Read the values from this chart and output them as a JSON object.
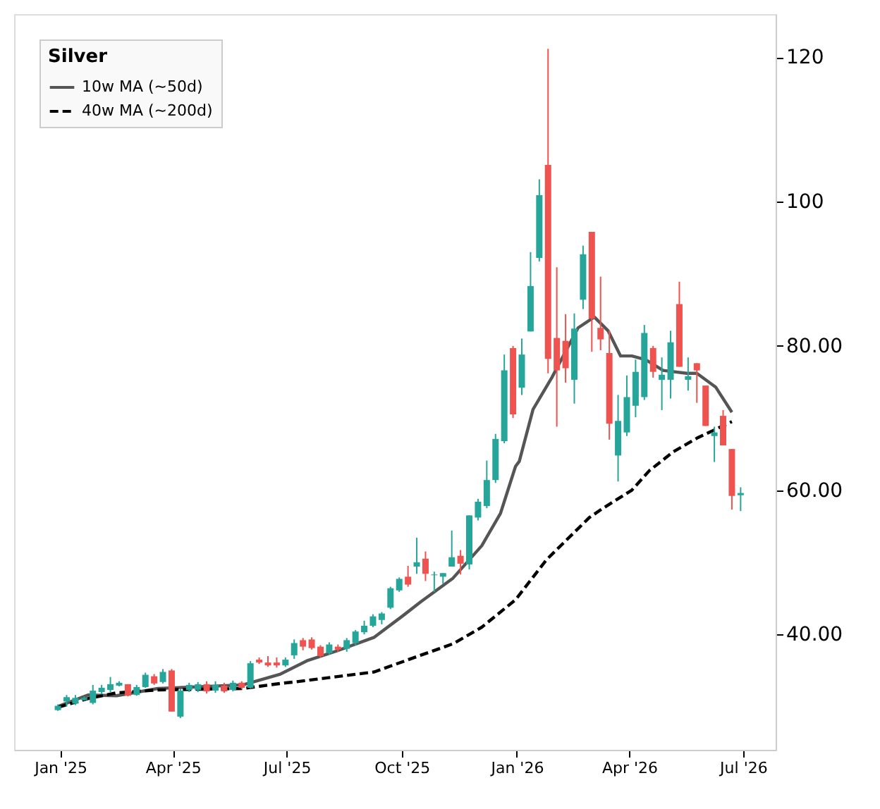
{
  "chart_data": {
    "type": "candlestick",
    "legend_title": "Silver",
    "x": [
      "2024-12-30",
      "2025-01-06",
      "2025-01-13",
      "2025-01-20",
      "2025-01-27",
      "2025-02-03",
      "2025-02-10",
      "2025-02-17",
      "2025-02-24",
      "2025-03-03",
      "2025-03-10",
      "2025-03-17",
      "2025-03-24",
      "2025-03-31",
      "2025-04-07",
      "2025-04-14",
      "2025-04-21",
      "2025-04-28",
      "2025-05-05",
      "2025-05-12",
      "2025-05-19",
      "2025-05-26",
      "2025-06-02",
      "2025-06-09",
      "2025-06-16",
      "2025-06-23",
      "2025-06-30",
      "2025-07-07",
      "2025-07-14",
      "2025-07-21",
      "2025-07-28",
      "2025-08-04",
      "2025-08-11",
      "2025-08-18",
      "2025-08-25",
      "2025-09-01",
      "2025-09-08",
      "2025-09-15",
      "2025-09-22",
      "2025-09-29",
      "2025-10-06",
      "2025-10-13",
      "2025-10-20",
      "2025-10-27",
      "2025-11-03",
      "2025-11-10",
      "2025-11-17",
      "2025-11-24",
      "2025-12-01",
      "2025-12-08",
      "2025-12-15",
      "2025-12-22",
      "2025-12-29",
      "2026-01-05",
      "2026-01-12",
      "2026-01-19",
      "2026-01-26",
      "2026-02-02",
      "2026-02-09",
      "2026-02-16",
      "2026-02-23",
      "2026-03-02",
      "2026-03-09",
      "2026-03-16",
      "2026-03-23",
      "2026-03-30",
      "2026-04-06",
      "2026-04-13",
      "2026-04-20",
      "2026-04-27",
      "2026-05-04",
      "2026-05-11",
      "2026-05-18",
      "2026-05-25",
      "2026-06-01",
      "2026-06-08",
      "2026-06-15",
      "2026-06-22",
      "2026-06-29"
    ],
    "ohlc": [
      [
        29.5,
        30.3,
        29.4,
        30.1
      ],
      [
        30.7,
        31.6,
        30.0,
        31.3
      ],
      [
        30.4,
        31.6,
        30.2,
        31.2
      ],
      [
        30.9,
        31.4,
        30.8,
        31.2
      ],
      [
        30.5,
        33.0,
        30.3,
        32.2
      ],
      [
        32.0,
        33.0,
        31.7,
        32.6
      ],
      [
        32.3,
        34.1,
        32.0,
        33.1
      ],
      [
        32.9,
        33.5,
        32.8,
        33.3
      ],
      [
        33.1,
        33.1,
        31.4,
        31.5
      ],
      [
        31.6,
        33.0,
        31.5,
        32.7
      ],
      [
        32.7,
        34.7,
        32.6,
        34.4
      ],
      [
        34.2,
        34.5,
        33.0,
        33.2
      ],
      [
        33.4,
        35.2,
        33.2,
        34.8
      ],
      [
        35.0,
        35.2,
        29.3,
        29.3
      ],
      [
        28.6,
        32.4,
        28.4,
        32.2
      ],
      [
        32.3,
        33.3,
        32.0,
        33.0
      ],
      [
        32.3,
        33.4,
        32.0,
        33.1
      ],
      [
        33.1,
        33.5,
        31.8,
        32.1
      ],
      [
        32.2,
        33.5,
        31.9,
        33.0
      ],
      [
        32.9,
        33.3,
        31.9,
        32.1
      ],
      [
        32.3,
        33.6,
        32.1,
        33.3
      ],
      [
        33.3,
        33.5,
        32.4,
        32.6
      ],
      [
        32.6,
        36.3,
        32.5,
        36.0
      ],
      [
        36.5,
        36.8,
        35.9,
        36.1
      ],
      [
        36.1,
        37.0,
        35.5,
        35.7
      ],
      [
        36.1,
        36.8,
        35.4,
        35.7
      ],
      [
        35.7,
        36.8,
        35.5,
        36.5
      ],
      [
        37.1,
        39.3,
        36.6,
        38.8
      ],
      [
        39.2,
        39.5,
        37.8,
        38.3
      ],
      [
        39.3,
        39.6,
        37.9,
        38.1
      ],
      [
        38.3,
        38.5,
        36.8,
        37.0
      ],
      [
        37.4,
        38.9,
        37.2,
        38.6
      ],
      [
        38.3,
        38.6,
        37.6,
        37.9
      ],
      [
        38.0,
        39.5,
        37.6,
        39.2
      ],
      [
        38.8,
        40.6,
        38.5,
        40.4
      ],
      [
        40.3,
        41.9,
        40.0,
        41.2
      ],
      [
        41.2,
        42.8,
        41.0,
        42.5
      ],
      [
        42.0,
        43.1,
        41.4,
        42.9
      ],
      [
        43.7,
        46.6,
        43.5,
        46.4
      ],
      [
        46.1,
        47.9,
        45.9,
        47.7
      ],
      [
        48.0,
        49.5,
        46.6,
        46.9
      ],
      [
        49.4,
        53.4,
        48.4,
        50.0
      ],
      [
        50.5,
        51.5,
        47.4,
        48.4
      ],
      [
        48.2,
        48.7,
        45.9,
        48.3
      ],
      [
        48.0,
        48.5,
        47.0,
        48.5
      ],
      [
        49.4,
        54.4,
        49.4,
        50.7
      ],
      [
        50.9,
        51.7,
        48.3,
        49.8
      ],
      [
        49.7,
        56.5,
        49.0,
        56.5
      ],
      [
        56.2,
        58.8,
        55.8,
        58.4
      ],
      [
        57.8,
        64.1,
        57.5,
        61.4
      ],
      [
        61.4,
        67.8,
        61.0,
        67.1
      ],
      [
        66.8,
        78.8,
        66.5,
        76.6
      ],
      [
        79.7,
        80.0,
        70.0,
        70.5
      ],
      [
        74.2,
        81.0,
        73.2,
        78.8
      ],
      [
        82.0,
        93.0,
        82.0,
        88.3
      ],
      [
        92.2,
        103.1,
        91.7,
        100.9
      ],
      [
        105.1,
        121.2,
        76.2,
        78.2
      ],
      [
        81.1,
        90.9,
        68.8,
        76.6
      ],
      [
        80.7,
        84.4,
        74.9,
        76.9
      ],
      [
        75.3,
        84.5,
        72.0,
        82.4
      ],
      [
        86.4,
        93.9,
        85.1,
        92.7
      ],
      [
        95.8,
        95.8,
        79.2,
        83.8
      ],
      [
        82.5,
        89.6,
        79.4,
        80.9
      ],
      [
        79.0,
        82.1,
        67.0,
        69.2
      ],
      [
        64.8,
        73.2,
        61.2,
        69.6
      ],
      [
        68.0,
        75.9,
        67.5,
        72.9
      ],
      [
        71.7,
        78.1,
        70.1,
        76.4
      ],
      [
        72.9,
        82.9,
        72.5,
        81.8
      ],
      [
        79.7,
        80.0,
        75.6,
        76.4
      ],
      [
        75.3,
        78.4,
        71.1,
        76.0
      ],
      [
        75.3,
        82.1,
        72.7,
        80.5
      ],
      [
        85.8,
        88.9,
        77.1,
        77.1
      ],
      [
        75.3,
        78.4,
        73.8,
        75.8
      ],
      [
        77.6,
        77.6,
        72.1,
        76.6
      ],
      [
        74.5,
        74.5,
        68.9,
        68.9
      ],
      [
        67.5,
        68.8,
        63.9,
        68.0
      ],
      [
        70.3,
        71.1,
        66.2,
        66.2
      ],
      [
        65.7,
        65.7,
        57.3,
        59.2
      ],
      [
        59.3,
        60.4,
        57.1,
        59.6
      ]
    ],
    "colors": [
      "#26a69a",
      "#26a69a",
      "#26a69a",
      "#26a69a",
      "#26a69a",
      "#26a69a",
      "#26a69a",
      "#26a69a",
      "#ef5350",
      "#26a69a",
      "#26a69a",
      "#ef5350",
      "#26a69a",
      "#ef5350",
      "#26a69a",
      "#26a69a",
      "#26a69a",
      "#ef5350",
      "#26a69a",
      "#ef5350",
      "#26a69a",
      "#ef5350",
      "#26a69a",
      "#ef5350",
      "#ef5350",
      "#ef5350",
      "#26a69a",
      "#26a69a",
      "#ef5350",
      "#ef5350",
      "#ef5350",
      "#26a69a",
      "#ef5350",
      "#26a69a",
      "#26a69a",
      "#26a69a",
      "#26a69a",
      "#26a69a",
      "#26a69a",
      "#26a69a",
      "#ef5350",
      "#26a69a",
      "#ef5350",
      "#26a69a",
      "#26a69a",
      "#26a69a",
      "#ef5350",
      "#26a69a",
      "#26a69a",
      "#26a69a",
      "#26a69a",
      "#26a69a",
      "#ef5350",
      "#26a69a",
      "#26a69a",
      "#26a69a",
      "#ef5350",
      "#ef5350",
      "#ef5350",
      "#26a69a",
      "#26a69a",
      "#ef5350",
      "#ef5350",
      "#ef5350",
      "#26a69a",
      "#26a69a",
      "#26a69a",
      "#26a69a",
      "#ef5350",
      "#26a69a",
      "#26a69a",
      "#ef5350",
      "#26a69a",
      "#ef5350",
      "#ef5350",
      "#26a69a",
      "#ef5350",
      "#ef5350",
      "#26a69a"
    ],
    "series": [
      {
        "name": "10w MA (~50d)",
        "type": "line",
        "color": "#555555",
        "line_style": "solid",
        "x": [
          "2024-12-30",
          "2025-01-23",
          "2025-02-15",
          "2025-03-20",
          "2025-05-27",
          "2025-06-26",
          "2025-07-18",
          "2025-08-10",
          "2025-09-09",
          "2025-10-02",
          "2025-10-16",
          "2025-11-11",
          "2025-12-04",
          "2025-12-19",
          "2025-12-31",
          "2026-01-03",
          "2026-01-14",
          "2026-01-29",
          "2026-02-19",
          "2026-03-04",
          "2026-03-15",
          "2026-03-25",
          "2026-04-03",
          "2026-04-14",
          "2026-04-28",
          "2026-05-17",
          "2026-05-25",
          "2026-06-09",
          "2026-06-22"
        ],
        "values": [
          30.0,
          31.6,
          31.5,
          32.5,
          33.0,
          34.5,
          36.4,
          37.7,
          39.6,
          42.6,
          44.5,
          47.8,
          52.3,
          56.8,
          63.3,
          64.0,
          71.2,
          75.6,
          82.5,
          84.0,
          82.1,
          78.6,
          78.6,
          78.1,
          76.6,
          76.2,
          76.2,
          74.3,
          70.8
        ]
      },
      {
        "name": "40w MA (~200d)",
        "type": "line",
        "color": "#000000",
        "line_style": "dashed",
        "x": [
          "2024-12-30",
          "2025-01-23",
          "2025-02-15",
          "2025-03-20",
          "2025-05-27",
          "2025-06-26",
          "2025-07-07",
          "2025-09-09",
          "2025-10-16",
          "2025-11-11",
          "2025-12-04",
          "2025-12-31",
          "2026-01-25",
          "2026-02-28",
          "2026-03-11",
          "2026-04-03",
          "2026-04-17",
          "2026-05-06",
          "2026-05-25",
          "2026-06-22"
        ],
        "values": [
          29.9,
          31.1,
          31.9,
          32.3,
          32.5,
          33.2,
          33.4,
          34.8,
          37.1,
          38.7,
          41.0,
          44.8,
          50.4,
          56.2,
          57.5,
          60.0,
          62.7,
          65.3,
          67.2,
          69.5
        ]
      }
    ],
    "xlim": [
      "2024-11-25",
      "2026-07-27"
    ],
    "xticks": [
      {
        "value": "2025-01-01",
        "label": "Jan '25"
      },
      {
        "value": "2025-04-01",
        "label": "Apr '25"
      },
      {
        "value": "2025-07-01",
        "label": "Jul '25"
      },
      {
        "value": "2025-10-01",
        "label": "Oct '25"
      },
      {
        "value": "2026-01-01",
        "label": "Jan '26"
      },
      {
        "value": "2026-04-01",
        "label": "Apr '26"
      },
      {
        "value": "2026-07-01",
        "label": "Jul '26"
      }
    ],
    "ylim": [
      24.0,
      126.0
    ],
    "yticks": [
      {
        "value": 40,
        "label": "40.00"
      },
      {
        "value": 60,
        "label": "60.00"
      },
      {
        "value": 80,
        "label": "80.00"
      },
      {
        "value": 100,
        "label": "100"
      },
      {
        "value": 120,
        "label": "120"
      }
    ],
    "grid": false,
    "legend": "top left"
  }
}
